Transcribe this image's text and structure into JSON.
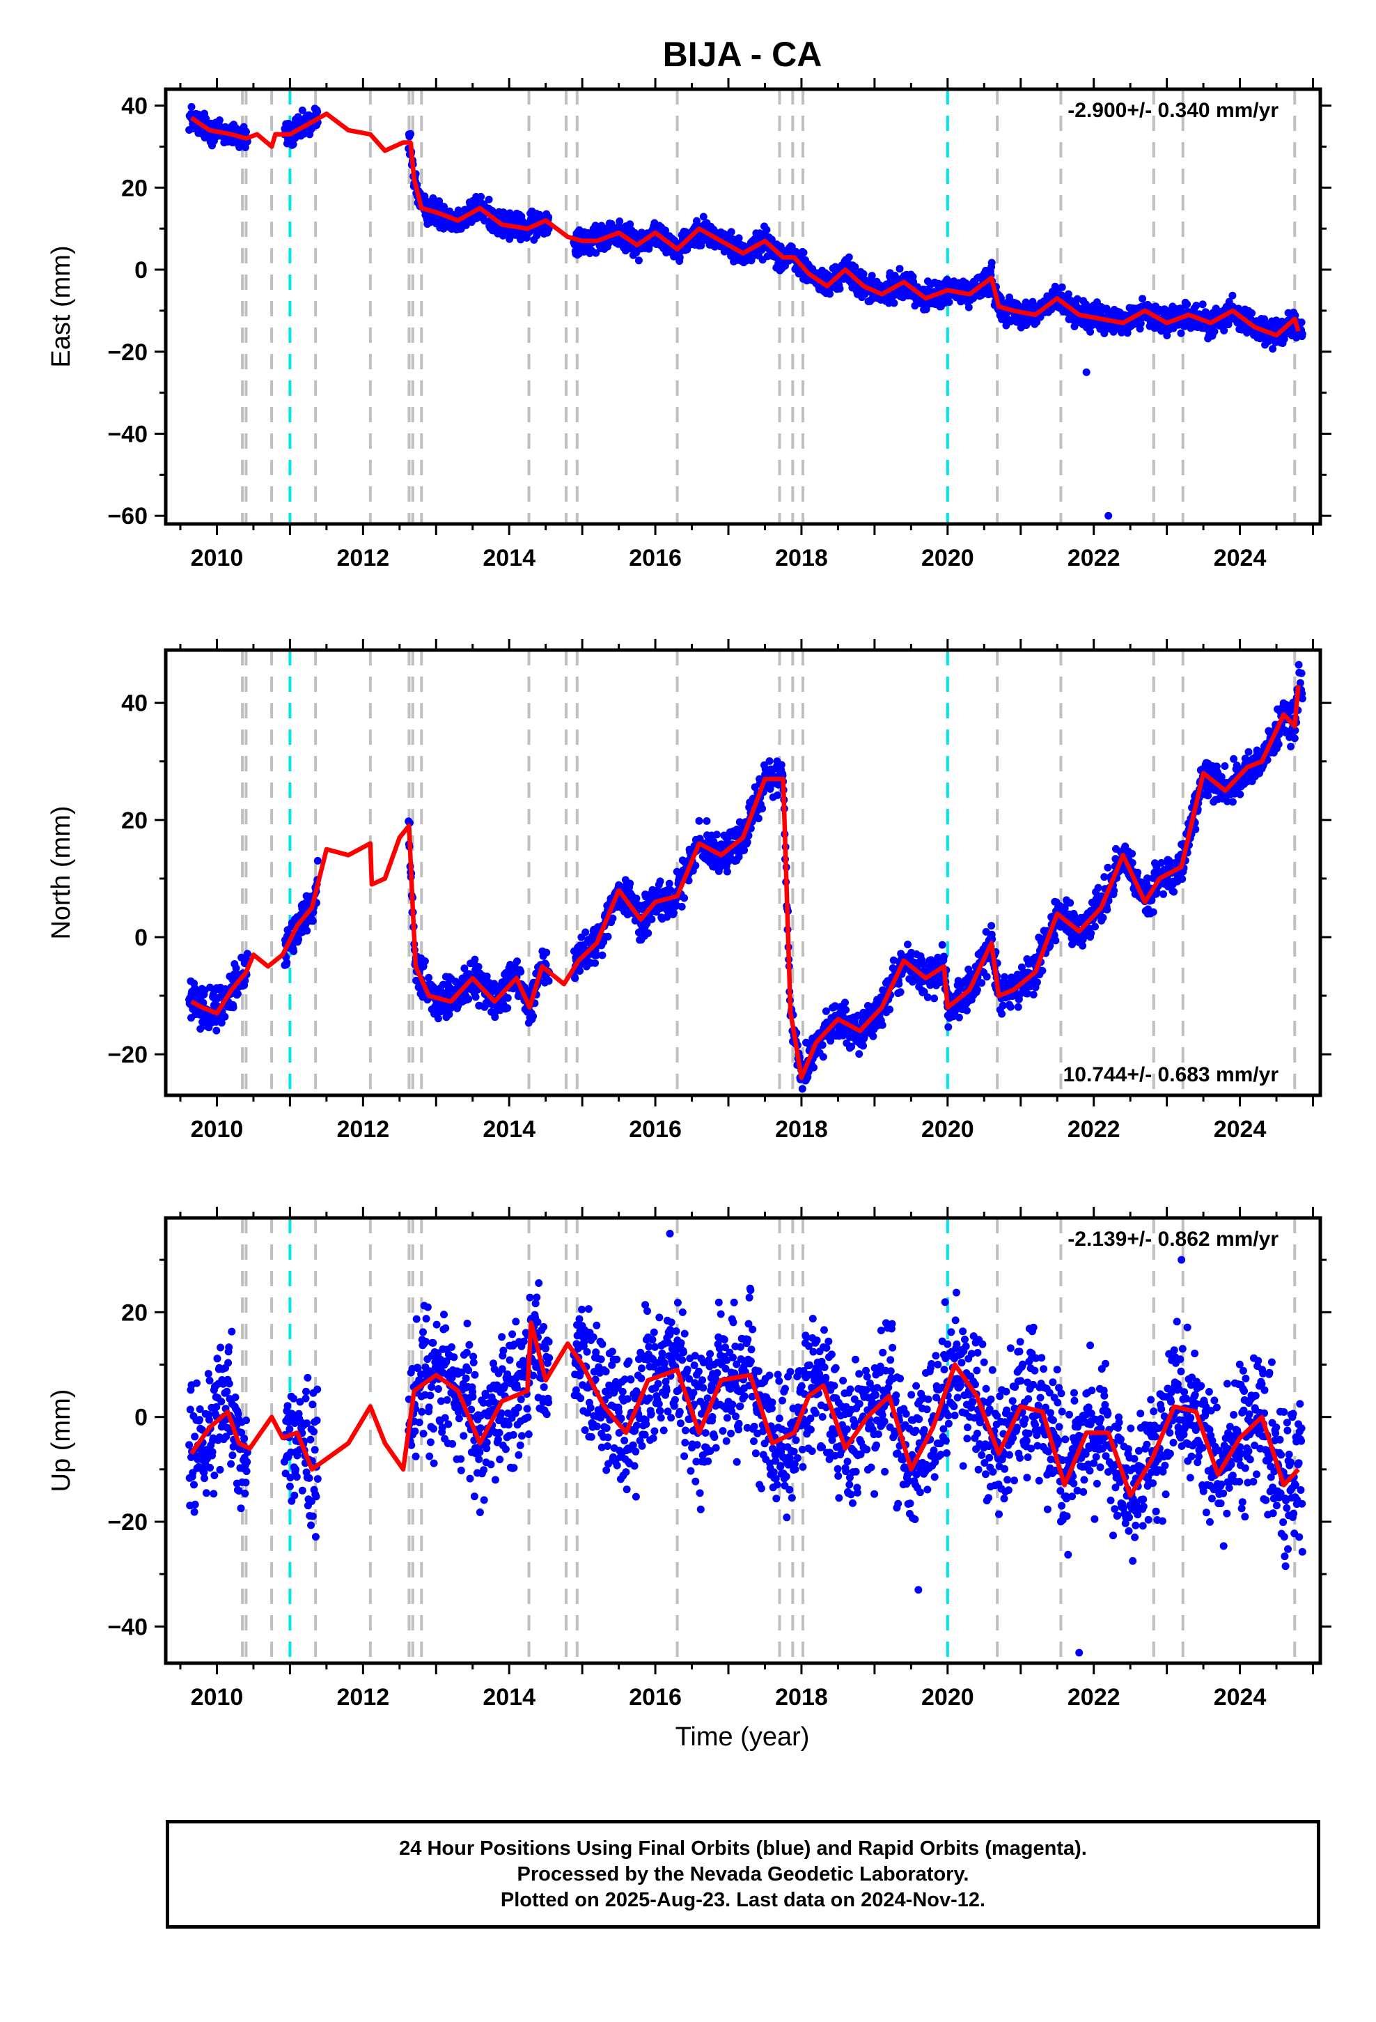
{
  "figure": {
    "title": "BIJA - CA",
    "xlabel": "Time (year)"
  },
  "colors": {
    "final_orbits": "#0000ff",
    "model": "#ff0000",
    "offset_equipment": "#bfbfbf",
    "offset_earthquake": "#00e5e5"
  },
  "events": {
    "equipment": [
      2010.35,
      2010.4,
      2010.75,
      2011.35,
      2012.1,
      2012.63,
      2012.68,
      2012.8,
      2014.27,
      2014.78,
      2014.93,
      2016.3,
      2017.7,
      2017.88,
      2018.02,
      2020.68,
      2021.55,
      2022.82,
      2023.22,
      2024.75
    ],
    "earthquake": [
      2011.0,
      2020.0
    ]
  },
  "chart_data": [
    {
      "type": "scatter",
      "name": "east",
      "ylabel": "East (mm)",
      "rate": "-2.900+/- 0.340 mm/yr",
      "rate_position": "top-right",
      "xlim": [
        2009.3,
        2025.1
      ],
      "ylim": [
        -62,
        44
      ],
      "xticks": [
        2010,
        2012,
        2014,
        2016,
        2018,
        2020,
        2022,
        2024
      ],
      "yticks": [
        -60,
        -40,
        -20,
        0,
        20,
        40
      ],
      "model": {
        "x": [
          2009.65,
          2009.9,
          2010.2,
          2010.4,
          2010.55,
          2010.75,
          2010.8,
          2011.0,
          2011.2,
          2011.5,
          2011.8,
          2012.1,
          2012.3,
          2012.55,
          2012.65,
          2012.7,
          2012.8,
          2013.0,
          2013.3,
          2013.6,
          2013.9,
          2014.25,
          2014.5,
          2014.8,
          2015.0,
          2015.2,
          2015.5,
          2015.75,
          2016.0,
          2016.3,
          2016.6,
          2016.9,
          2017.2,
          2017.5,
          2017.75,
          2017.9,
          2018.1,
          2018.35,
          2018.6,
          2018.85,
          2019.1,
          2019.4,
          2019.7,
          2020.0,
          2020.3,
          2020.6,
          2020.7,
          2020.9,
          2021.2,
          2021.5,
          2021.8,
          2022.1,
          2022.4,
          2022.7,
          2023.0,
          2023.3,
          2023.6,
          2023.9,
          2024.2,
          2024.5,
          2024.75,
          2024.8
        ],
        "y": [
          37,
          34,
          33,
          32,
          33,
          30,
          33,
          33,
          35,
          38,
          34,
          33,
          29,
          31,
          31,
          22,
          15,
          14,
          12,
          15,
          11,
          10,
          12,
          8,
          7,
          7,
          9,
          6,
          9,
          5,
          10,
          7,
          4,
          7,
          3,
          3,
          -1,
          -4,
          0,
          -4,
          -6,
          -3,
          -7,
          -5,
          -6,
          -2,
          -9,
          -10,
          -11,
          -7,
          -11,
          -12,
          -13,
          -10,
          -13,
          -11,
          -13,
          -10,
          -14,
          -16,
          -12,
          -15
        ]
      },
      "outliers": [
        {
          "x": 2021.9,
          "y": -25
        },
        {
          "x": 2022.2,
          "y": -60
        }
      ]
    },
    {
      "type": "scatter",
      "name": "north",
      "ylabel": "North (mm)",
      "rate": "10.744+/- 0.683 mm/yr",
      "rate_position": "bottom-right",
      "xlim": [
        2009.3,
        2025.1
      ],
      "ylim": [
        -27,
        49
      ],
      "xticks": [
        2010,
        2012,
        2014,
        2016,
        2018,
        2020,
        2022,
        2024
      ],
      "yticks": [
        -20,
        0,
        20,
        40
      ],
      "model": {
        "x": [
          2009.65,
          2009.8,
          2010.0,
          2010.2,
          2010.4,
          2010.5,
          2010.7,
          2010.9,
          2011.1,
          2011.3,
          2011.5,
          2011.8,
          2012.1,
          2012.12,
          2012.3,
          2012.5,
          2012.63,
          2012.68,
          2012.72,
          2012.9,
          2013.2,
          2013.5,
          2013.8,
          2014.1,
          2014.28,
          2014.45,
          2014.75,
          2014.95,
          2015.2,
          2015.5,
          2015.8,
          2016.0,
          2016.3,
          2016.6,
          2016.9,
          2017.2,
          2017.5,
          2017.75,
          2017.85,
          2017.88,
          2018.0,
          2018.2,
          2018.5,
          2018.8,
          2019.1,
          2019.4,
          2019.7,
          2019.95,
          2020.0,
          2020.3,
          2020.6,
          2020.7,
          2020.9,
          2021.2,
          2021.5,
          2021.8,
          2022.1,
          2022.4,
          2022.7,
          2022.9,
          2023.2,
          2023.5,
          2023.8,
          2024.1,
          2024.3,
          2024.6,
          2024.75,
          2024.8
        ],
        "y": [
          -11,
          -12,
          -13,
          -9,
          -6,
          -3,
          -5,
          -3,
          2,
          5,
          15,
          14,
          16,
          9,
          10,
          17,
          19,
          5,
          -5,
          -10,
          -11,
          -7,
          -11,
          -7,
          -12,
          -5,
          -8,
          -4,
          -1,
          8,
          3,
          6,
          7,
          16,
          14,
          17,
          27,
          27,
          -13,
          -15,
          -24,
          -18,
          -14,
          -16,
          -12,
          -4,
          -7,
          -5,
          -12,
          -9,
          -1,
          -10,
          -9,
          -6,
          4,
          1,
          5,
          14,
          6,
          10,
          12,
          28,
          25,
          29,
          30,
          38,
          36,
          43
        ]
      },
      "outliers": []
    },
    {
      "type": "scatter",
      "name": "up",
      "ylabel": "Up (mm)",
      "rate": "-2.139+/- 0.862 mm/yr",
      "rate_position": "top-right",
      "xlim": [
        2009.3,
        2025.1
      ],
      "ylim": [
        -47,
        38
      ],
      "xticks": [
        2010,
        2012,
        2014,
        2016,
        2018,
        2020,
        2022,
        2024
      ],
      "yticks": [
        -40,
        -20,
        0,
        20
      ],
      "model": {
        "x": [
          2009.65,
          2009.9,
          2010.15,
          2010.3,
          2010.45,
          2010.6,
          2010.75,
          2010.9,
          2011.1,
          2011.3,
          2011.5,
          2011.8,
          2012.1,
          2012.3,
          2012.55,
          2012.7,
          2013.0,
          2013.3,
          2013.6,
          2013.9,
          2014.25,
          2014.3,
          2014.5,
          2014.8,
          2015.0,
          2015.3,
          2015.6,
          2015.9,
          2016.3,
          2016.6,
          2016.9,
          2017.3,
          2017.6,
          2017.9,
          2018.1,
          2018.3,
          2018.6,
          2018.9,
          2019.2,
          2019.5,
          2019.8,
          2020.1,
          2020.4,
          2020.7,
          2021.0,
          2021.3,
          2021.6,
          2021.9,
          2022.2,
          2022.5,
          2022.8,
          2023.1,
          2023.4,
          2023.7,
          2024.0,
          2024.3,
          2024.6,
          2024.8
        ],
        "y": [
          -7,
          -2,
          1,
          -5,
          -6,
          -3,
          0,
          -4,
          -3,
          -10,
          -8,
          -5,
          2,
          -5,
          -10,
          5,
          8,
          5,
          -5,
          3,
          5,
          18,
          7,
          14,
          10,
          2,
          -3,
          7,
          9,
          -3,
          7,
          8,
          -5,
          -3,
          4,
          6,
          -6,
          0,
          4,
          -10,
          -2,
          10,
          4,
          -7,
          2,
          1,
          -13,
          -3,
          -3,
          -15,
          -8,
          2,
          1,
          -11,
          -4,
          0,
          -13,
          -10
        ]
      },
      "outliers": [
        {
          "x": 2019.6,
          "y": -33
        },
        {
          "x": 2021.8,
          "y": -45
        },
        {
          "x": 2016.2,
          "y": 35
        },
        {
          "x": 2023.2,
          "y": 30
        }
      ]
    }
  ],
  "footer": {
    "lines": [
      "24 Hour Positions Using Final Orbits (blue) and Rapid Orbits (magenta).",
      "Processed by the Nevada Geodetic Laboratory.",
      "Plotted on 2025-Aug-23. Last data on 2024-Nov-12."
    ]
  }
}
